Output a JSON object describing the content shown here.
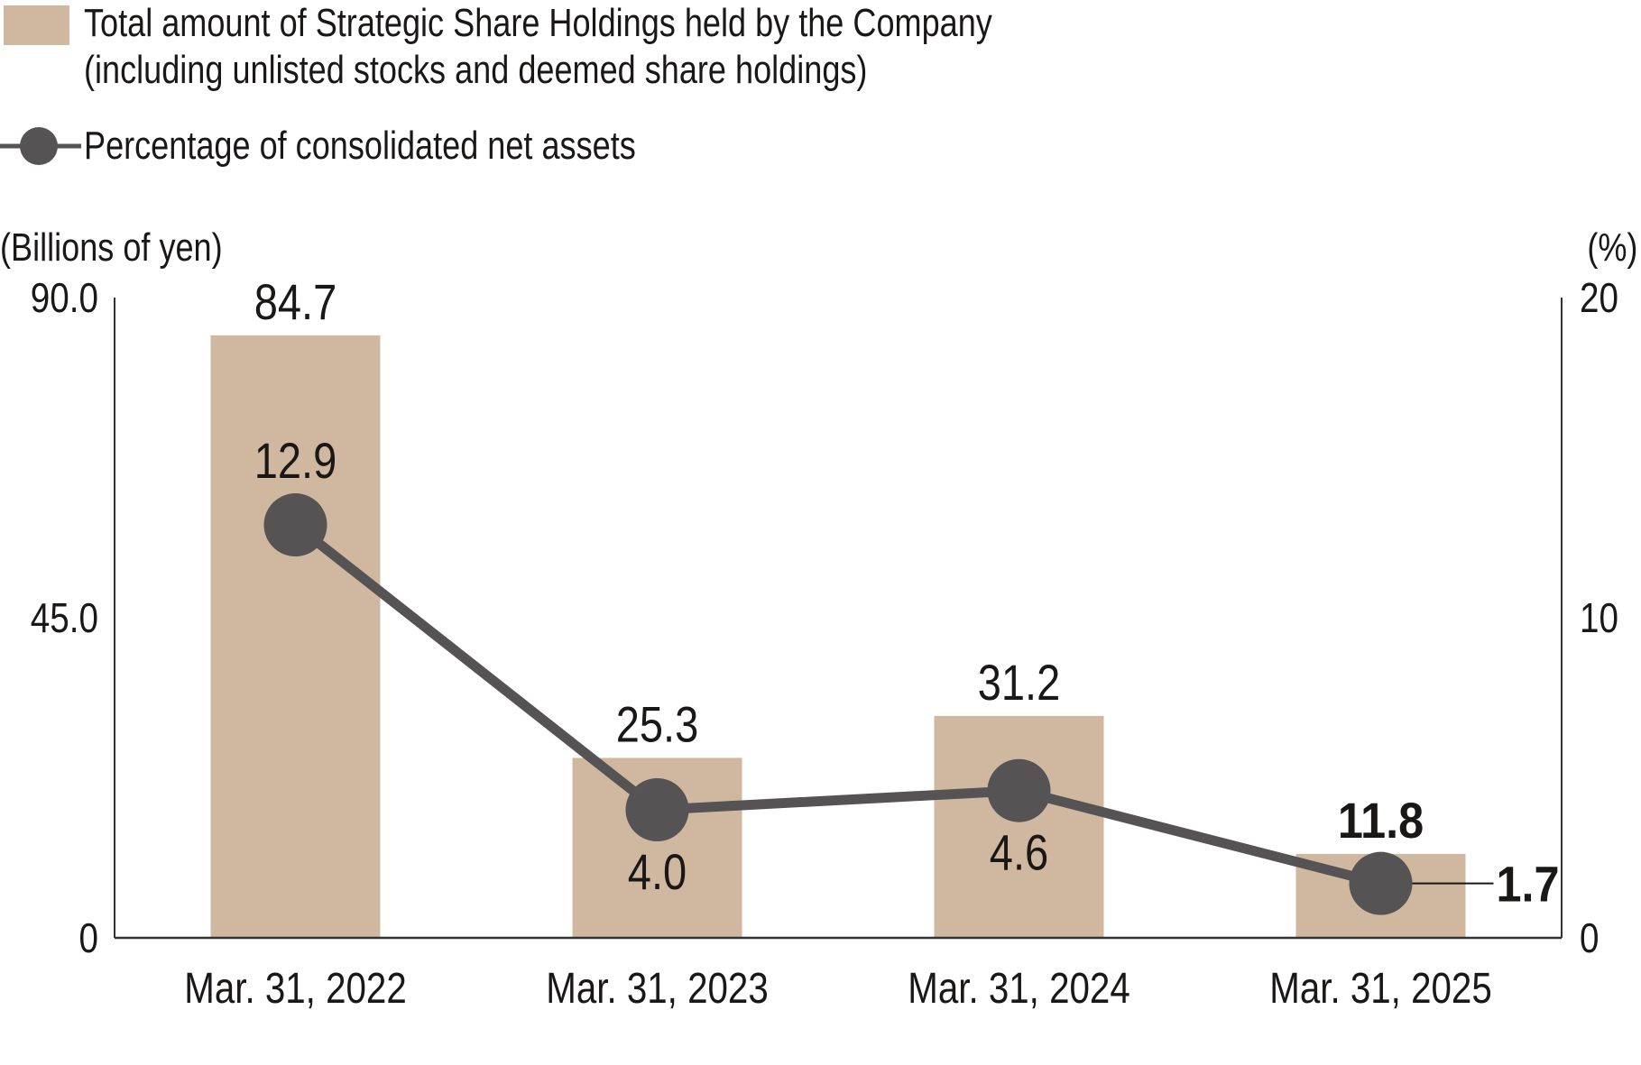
{
  "legend": {
    "bar_label_line1": "Total amount of Strategic Share Holdings held by the Company",
    "bar_label_line2": "(including unlisted stocks and deemed share holdings)",
    "line_label": "Percentage of consolidated net assets"
  },
  "colors": {
    "bar": "#d0b8a0",
    "line": "#555354",
    "text": "#1a1717",
    "axis": "#333333"
  },
  "chart_data": {
    "type": "bar+line",
    "categories": [
      "Mar. 31, 2022",
      "Mar. 31, 2023",
      "Mar. 31, 2024",
      "Mar. 31, 2025"
    ],
    "series": [
      {
        "name": "Total amount of Strategic Share Holdings held by the Company (including unlisted stocks and deemed share holdings)",
        "type": "bar",
        "axis": "left",
        "values": [
          84.7,
          25.3,
          31.2,
          11.8
        ],
        "labels": [
          "84.7",
          "25.3",
          "31.2",
          "11.8"
        ]
      },
      {
        "name": "Percentage of consolidated net assets",
        "type": "line",
        "axis": "right",
        "values": [
          12.9,
          4.0,
          4.6,
          1.7
        ],
        "labels": [
          "12.9",
          "4.0",
          "4.6",
          "1.7"
        ]
      }
    ],
    "left_axis": {
      "label": "(Billions of yen)",
      "range": [
        0,
        90
      ],
      "ticks": [
        "0",
        "45.0",
        "90.0"
      ],
      "tick_values": [
        0,
        45,
        90
      ]
    },
    "right_axis": {
      "label": "(%)",
      "range": [
        0,
        20
      ],
      "ticks": [
        "0",
        "10",
        "20"
      ],
      "tick_values": [
        0,
        10,
        20
      ]
    },
    "grid": false,
    "legend_position": "top-left"
  }
}
